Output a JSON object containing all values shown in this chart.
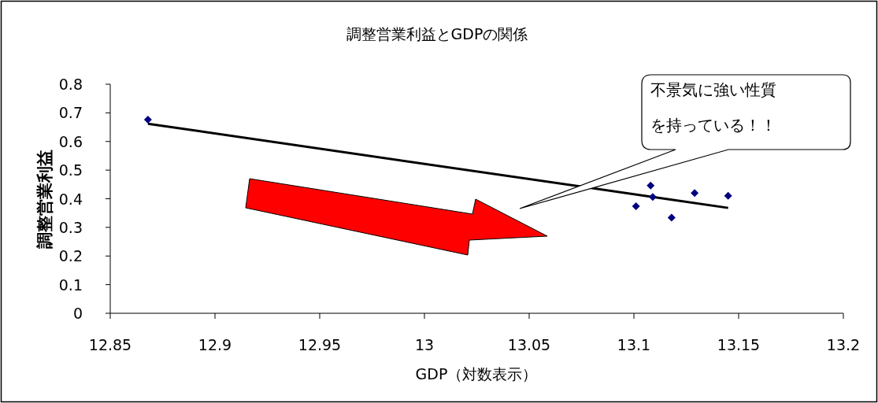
{
  "chart_data": {
    "type": "scatter",
    "title": "調整営業利益とGDPの関係",
    "xlabel": "GDP（対数表示）",
    "ylabel": "調整営業利益",
    "xlim": [
      12.85,
      13.2
    ],
    "xticks": [
      12.85,
      12.9,
      12.95,
      13,
      13.05,
      13.1,
      13.15,
      13.2
    ],
    "ylim": [
      0,
      0.8
    ],
    "yticks": [
      0,
      0.1,
      0.2,
      0.3,
      0.4,
      0.5,
      0.6,
      0.7,
      0.8
    ],
    "grid": false,
    "marker": "diamond",
    "series": [
      {
        "color": "#000080",
        "x": [
          12.868,
          13.101,
          13.108,
          13.109,
          13.118,
          13.129,
          13.145
        ],
        "values": [
          0.676,
          0.374,
          0.446,
          0.406,
          0.334,
          0.42,
          0.41
        ]
      },
      {
        "type": "line",
        "color": "#000000",
        "marker": "none",
        "x": [
          12.868,
          13.145
        ],
        "values": [
          0.662,
          0.368
        ]
      }
    ],
    "annotations": [
      "不景気に強い性質を持っている！！"
    ]
  }
}
